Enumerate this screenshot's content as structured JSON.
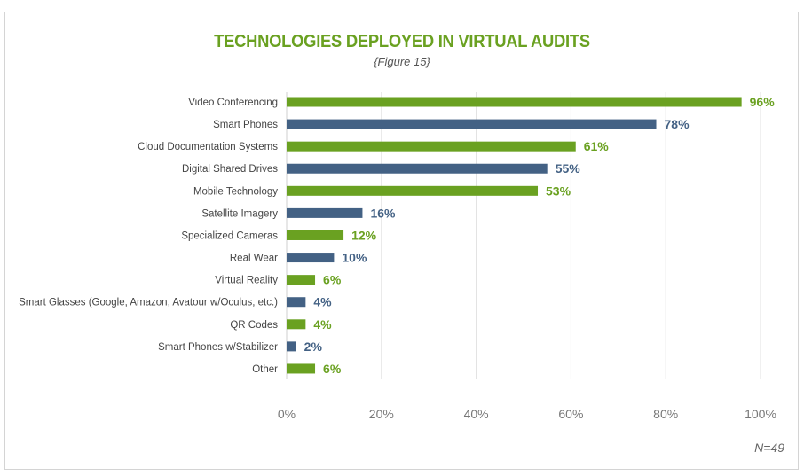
{
  "chart_data": {
    "type": "bar",
    "orientation": "horizontal",
    "title": "TECHNOLOGIES DEPLOYED IN VIRTUAL AUDITS",
    "subtitle": "{Figure 15}",
    "note": "N=49",
    "categories": [
      "Video Conferencing",
      "Smart Phones",
      "Cloud Documentation Systems",
      "Digital Shared Drives",
      "Mobile Technology",
      "Satellite Imagery",
      "Specialized Cameras",
      "Real Wear",
      "Virtual Reality",
      "Smart Glasses (Google, Amazon, Avatour w/Oculus, etc.)",
      "QR Codes",
      "Smart Phones w/Stabilizer",
      "Other"
    ],
    "values": [
      96,
      78,
      61,
      55,
      53,
      16,
      12,
      10,
      6,
      4,
      4,
      2,
      6
    ],
    "value_labels": [
      "96%",
      "78%",
      "61%",
      "55%",
      "53%",
      "16%",
      "12%",
      "10%",
      "6%",
      "4%",
      "4%",
      "2%",
      "6%"
    ],
    "bar_colors": [
      "#6aa121",
      "#436184",
      "#6aa121",
      "#436184",
      "#6aa121",
      "#436184",
      "#6aa121",
      "#436184",
      "#6aa121",
      "#436184",
      "#6aa121",
      "#436184",
      "#6aa121"
    ],
    "xlim": [
      0,
      100
    ],
    "xticks": [
      "0%",
      "20%",
      "40%",
      "60%",
      "80%",
      "100%"
    ],
    "grid": "vertical",
    "legend": "none"
  }
}
